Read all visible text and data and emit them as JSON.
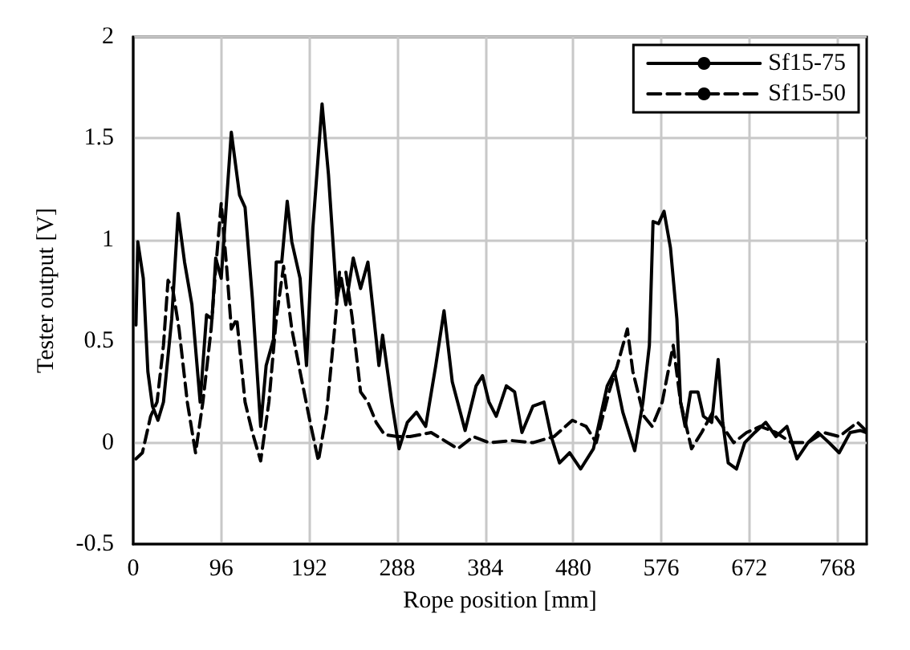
{
  "chart_data": {
    "type": "line",
    "xlabel": "Rope position [mm]",
    "ylabel": "Tester output [V]",
    "xlim": [
      0,
      800
    ],
    "xticks": [
      0,
      96,
      192,
      288,
      384,
      480,
      576,
      672,
      768
    ],
    "ylim": [
      -0.5,
      2
    ],
    "yticks": [
      -0.5,
      0,
      0.5,
      1,
      1.5,
      2
    ],
    "grid": true,
    "legend": "top right",
    "marker": "none",
    "series": [
      {
        "name": "Sf15-75",
        "color": "#000000",
        "line_style": "solid",
        "x": [
          3,
          5,
          11,
          16,
          21,
          27,
          33,
          42,
          49,
          56,
          64,
          73,
          80,
          86,
          90,
          96,
          107,
          116,
          122,
          130,
          139,
          145,
          153,
          156,
          162,
          168,
          173,
          182,
          189,
          196,
          206,
          213,
          222,
          227,
          232,
          240,
          248,
          256,
          265,
          268,
          272,
          282,
          290,
          299,
          309,
          319,
          330,
          339,
          348,
          362,
          374,
          381,
          388,
          396,
          407,
          416,
          424,
          436,
          448,
          456,
          465,
          476,
          488,
          502,
          517,
          525,
          534,
          547,
          556,
          563,
          567,
          573,
          579,
          586,
          593,
          597,
          602,
          608,
          616,
          622,
          631,
          638,
          643,
          649,
          658,
          667,
          678,
          690,
          701,
          713,
          724,
          736,
          747,
          759,
          770,
          782,
          793,
          799
        ],
        "values": [
          0.58,
          0.99,
          0.81,
          0.35,
          0.18,
          0.11,
          0.2,
          0.61,
          1.13,
          0.89,
          0.68,
          0.2,
          0.63,
          0.61,
          0.91,
          0.81,
          1.53,
          1.22,
          1.16,
          0.71,
          0.08,
          0.38,
          0.51,
          0.89,
          0.89,
          1.19,
          0.99,
          0.81,
          0.38,
          1.06,
          1.67,
          1.32,
          0.71,
          0.81,
          0.68,
          0.91,
          0.76,
          0.89,
          0.51,
          0.38,
          0.53,
          0.2,
          -0.03,
          0.1,
          0.15,
          0.08,
          0.38,
          0.65,
          0.3,
          0.06,
          0.28,
          0.33,
          0.2,
          0.13,
          0.28,
          0.25,
          0.05,
          0.18,
          0.2,
          0.03,
          -0.1,
          -0.05,
          -0.13,
          -0.03,
          0.28,
          0.35,
          0.15,
          -0.04,
          0.2,
          0.48,
          1.09,
          1.08,
          1.14,
          0.96,
          0.61,
          0.2,
          0.08,
          0.25,
          0.25,
          0.13,
          0.1,
          0.41,
          0.1,
          -0.1,
          -0.13,
          0,
          0.05,
          0.1,
          0.03,
          0.08,
          -0.08,
          0,
          0.05,
          0,
          -0.05,
          0.05,
          0.06,
          0.05
        ]
      },
      {
        "name": "Sf15-50",
        "color": "#000000",
        "line_style": "dashed",
        "x": [
          3,
          10,
          19,
          26,
          33,
          38,
          43,
          50,
          59,
          68,
          76,
          85,
          90,
          96,
          102,
          107,
          113,
          122,
          130,
          139,
          148,
          156,
          164,
          173,
          182,
          193,
          202,
          211,
          219,
          225,
          232,
          239,
          248,
          256,
          265,
          274,
          288,
          302,
          325,
          354,
          371,
          388,
          413,
          436,
          459,
          479,
          494,
          505,
          519,
          528,
          539,
          545,
          557,
          566,
          577,
          589,
          597,
          609,
          620,
          632,
          643,
          655,
          669,
          684,
          701,
          718,
          736,
          753,
          770,
          790,
          799
        ],
        "values": [
          -0.08,
          -0.05,
          0.13,
          0.2,
          0.48,
          0.8,
          0.76,
          0.56,
          0.2,
          -0.05,
          0.2,
          0.56,
          0.86,
          1.18,
          0.86,
          0.56,
          0.61,
          0.2,
          0.05,
          -0.09,
          0.2,
          0.61,
          0.87,
          0.56,
          0.35,
          0.1,
          -0.09,
          0.15,
          0.53,
          0.84,
          0.84,
          0.61,
          0.25,
          0.2,
          0.1,
          0.04,
          0.03,
          0.03,
          0.05,
          -0.03,
          0.03,
          0,
          0.01,
          0,
          0.03,
          0.11,
          0.08,
          0,
          0.25,
          0.38,
          0.56,
          0.35,
          0.13,
          0.08,
          0.2,
          0.48,
          0.2,
          -0.03,
          0.05,
          0.15,
          0.08,
          0,
          0.05,
          0.08,
          0.05,
          0,
          0,
          0.05,
          0.03,
          0.1,
          0.06
        ]
      }
    ]
  }
}
